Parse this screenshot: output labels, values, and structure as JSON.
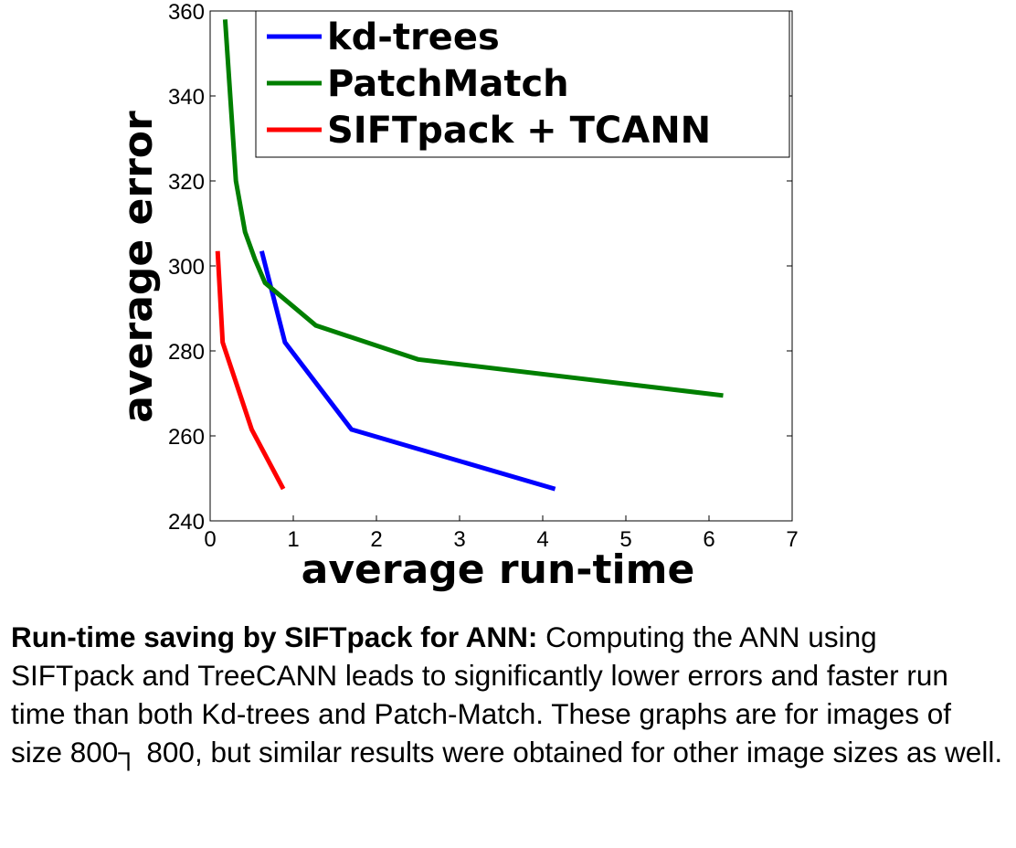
{
  "chart_data": {
    "type": "line",
    "xlabel": "average run-time",
    "ylabel": "average error",
    "xlim": [
      0,
      7
    ],
    "ylim": [
      240,
      360
    ],
    "xticks": [
      0,
      1,
      2,
      3,
      4,
      5,
      6,
      7
    ],
    "yticks": [
      240,
      260,
      280,
      300,
      320,
      340,
      360
    ],
    "legend_position": "top-right",
    "grid": false,
    "series": [
      {
        "name": "kd-trees",
        "color": "#0000ff",
        "x": [
          0.62,
          0.9,
          1.7,
          4.15
        ],
        "y": [
          303.5,
          282,
          261.5,
          247.5
        ]
      },
      {
        "name": "PatchMatch",
        "color": "#007f00",
        "x": [
          0.18,
          0.31,
          0.42,
          0.54,
          0.66,
          1.27,
          2.5,
          6.17
        ],
        "y": [
          358,
          320,
          308,
          301.5,
          296,
          286,
          278,
          269.5
        ]
      },
      {
        "name": "SIFTpack + TCANN",
        "color": "#ff0000",
        "x": [
          0.09,
          0.15,
          0.5,
          0.88
        ],
        "y": [
          303.5,
          282,
          261.5,
          247.5
        ]
      }
    ]
  },
  "caption": {
    "bold": "Run-time saving by SIFTpack for ANN:",
    "text": " Computing the ANN using SIFTpack and TreeCANN leads to significantly lower errors and faster run time than both Kd-trees and Patch-Match. These graphs are for images of size 800┐ 800, but similar results were obtained for other image sizes as well."
  }
}
